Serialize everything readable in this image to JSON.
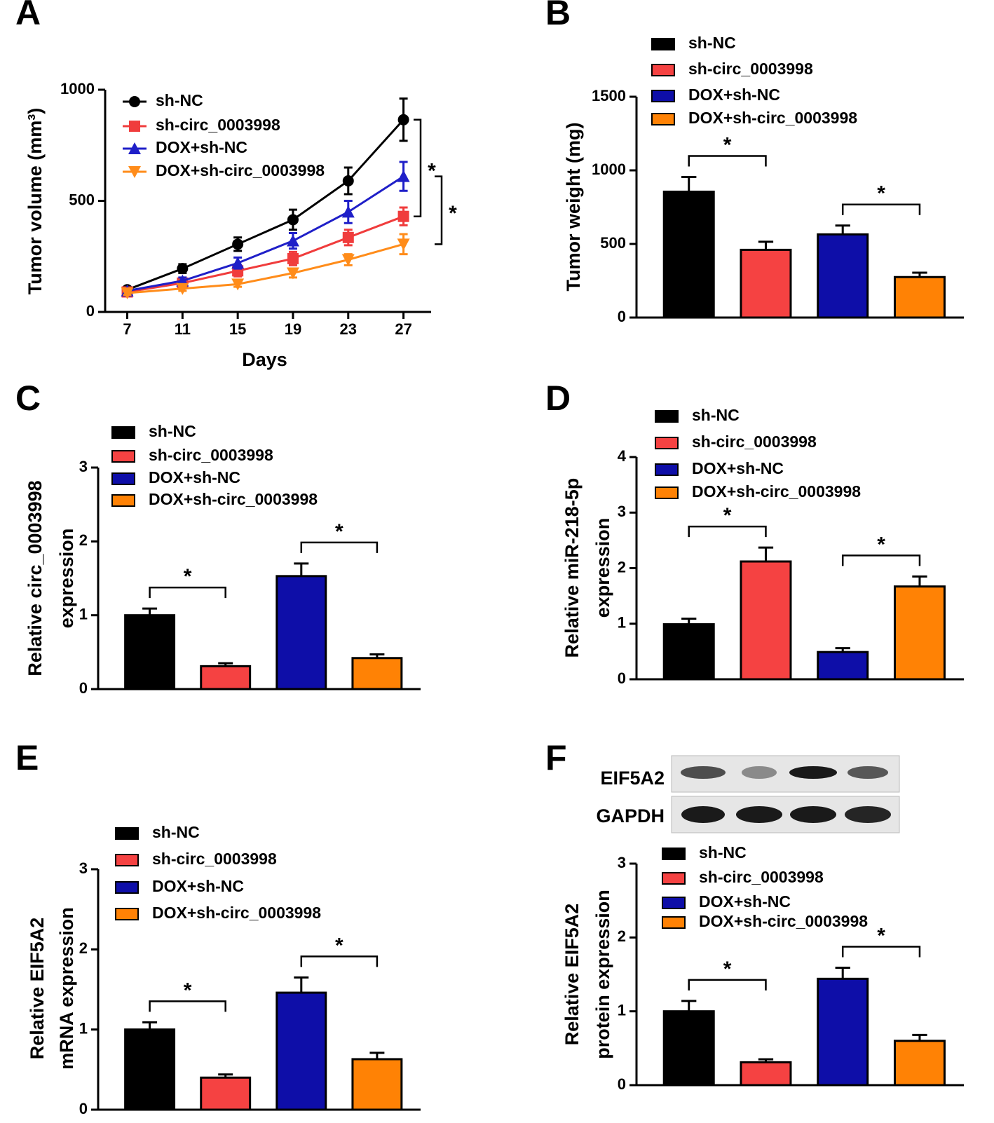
{
  "chart_data": [
    {
      "panel": "A",
      "type": "line",
      "x": [
        7,
        11,
        15,
        19,
        23,
        27
      ],
      "xlim": [
        5.4,
        29
      ],
      "xticks": [
        7,
        11,
        15,
        19,
        23,
        27
      ],
      "ylim": [
        0,
        1000
      ],
      "yticks": [
        0,
        500,
        1000
      ],
      "x_label": "Days",
      "y_label": [
        "Tumor volume (mm³)"
      ],
      "series": [
        {
          "name": "sh-NC",
          "color": "#000000",
          "marker": "circle",
          "values": [
            100,
            195,
            305,
            415,
            590,
            865
          ],
          "errors": [
            10,
            20,
            30,
            45,
            60,
            95
          ]
        },
        {
          "name": "sh-circ_0003998",
          "color": "#f03c3c",
          "marker": "square",
          "values": [
            90,
            130,
            185,
            240,
            335,
            430
          ],
          "errors": [
            10,
            15,
            25,
            30,
            35,
            40
          ]
        },
        {
          "name": "DOX+sh-NC",
          "color": "#1f1fc8",
          "marker": "triangle-up",
          "values": [
            95,
            140,
            220,
            320,
            450,
            610
          ],
          "errors": [
            10,
            15,
            25,
            35,
            50,
            65
          ]
        },
        {
          "name": "DOX+sh-circ_0003998",
          "color": "#ff8c1a",
          "marker": "triangle-down",
          "values": [
            85,
            105,
            125,
            175,
            235,
            305
          ],
          "errors": [
            8,
            10,
            12,
            20,
            25,
            45
          ]
        }
      ],
      "annotations": [
        "*",
        "*"
      ]
    },
    {
      "panel": "B",
      "type": "bar",
      "ylim": [
        0,
        1500
      ],
      "yticks": [
        0,
        500,
        1000,
        1500
      ],
      "y_label": [
        "Tumor weight (mg)"
      ],
      "series": [
        {
          "name": "sh-NC",
          "color": "#000000",
          "values": [
            855
          ],
          "errors": [
            100
          ]
        },
        {
          "name": "sh-circ_0003998",
          "color": "#f54242",
          "values": [
            460
          ],
          "errors": [
            55
          ]
        },
        {
          "name": "DOX+sh-NC",
          "color": "#0e0ea8",
          "values": [
            565
          ],
          "errors": [
            60
          ]
        },
        {
          "name": "DOX+sh-circ_0003998",
          "color": "#ff8205",
          "values": [
            275
          ],
          "errors": [
            30
          ]
        }
      ],
      "annotations": [
        "*",
        "*"
      ]
    },
    {
      "panel": "C",
      "type": "bar",
      "ylim": [
        0,
        3
      ],
      "yticks": [
        0,
        1,
        2,
        3
      ],
      "y_label": [
        "Relative circ_0003998",
        "expression"
      ],
      "series": [
        {
          "name": "sh-NC",
          "color": "#000000",
          "values": [
            1.0
          ],
          "errors": [
            0.09
          ]
        },
        {
          "name": "sh-circ_0003998",
          "color": "#f54242",
          "values": [
            0.31
          ],
          "errors": [
            0.04
          ]
        },
        {
          "name": "DOX+sh-NC",
          "color": "#0e0ea8",
          "values": [
            1.53
          ],
          "errors": [
            0.17
          ]
        },
        {
          "name": "DOX+sh-circ_0003998",
          "color": "#ff8205",
          "values": [
            0.42
          ],
          "errors": [
            0.05
          ]
        }
      ],
      "annotations": [
        "*",
        "*"
      ]
    },
    {
      "panel": "D",
      "type": "bar",
      "ylim": [
        0,
        4
      ],
      "yticks": [
        0,
        1,
        2,
        3,
        4
      ],
      "y_label": [
        "Relative miR-218-5p",
        "expression"
      ],
      "series": [
        {
          "name": "sh-NC",
          "color": "#000000",
          "values": [
            0.99
          ],
          "errors": [
            0.1
          ]
        },
        {
          "name": "sh-circ_0003998",
          "color": "#f54242",
          "values": [
            2.12
          ],
          "errors": [
            0.25
          ]
        },
        {
          "name": "DOX+sh-NC",
          "color": "#0e0ea8",
          "values": [
            0.49
          ],
          "errors": [
            0.07
          ]
        },
        {
          "name": "DOX+sh-circ_0003998",
          "color": "#ff8205",
          "values": [
            1.67
          ],
          "errors": [
            0.18
          ]
        }
      ],
      "annotations": [
        "*",
        "*"
      ]
    },
    {
      "panel": "E",
      "type": "bar",
      "ylim": [
        0,
        3
      ],
      "yticks": [
        0,
        1,
        2,
        3
      ],
      "y_label": [
        "Relative EIF5A2",
        "mRNA expression"
      ],
      "series": [
        {
          "name": "sh-NC",
          "color": "#000000",
          "values": [
            1.0
          ],
          "errors": [
            0.09
          ]
        },
        {
          "name": "sh-circ_0003998",
          "color": "#f54242",
          "values": [
            0.4
          ],
          "errors": [
            0.04
          ]
        },
        {
          "name": "DOX+sh-NC",
          "color": "#0e0ea8",
          "values": [
            1.46
          ],
          "errors": [
            0.19
          ]
        },
        {
          "name": "DOX+sh-circ_0003998",
          "color": "#ff8205",
          "values": [
            0.63
          ],
          "errors": [
            0.08
          ]
        }
      ],
      "annotations": [
        "*",
        "*"
      ]
    },
    {
      "panel": "F",
      "type": "bar",
      "ylim": [
        0,
        3
      ],
      "yticks": [
        0,
        1,
        2,
        3
      ],
      "y_label": [
        "Relative EIF5A2",
        "protein expression"
      ],
      "blot": [
        "EIF5A2",
        "GAPDH"
      ],
      "series": [
        {
          "name": "sh-NC",
          "color": "#000000",
          "values": [
            1.0
          ],
          "errors": [
            0.14
          ]
        },
        {
          "name": "sh-circ_0003998",
          "color": "#f54242",
          "values": [
            0.31
          ],
          "errors": [
            0.04
          ]
        },
        {
          "name": "DOX+sh-NC",
          "color": "#0e0ea8",
          "values": [
            1.44
          ],
          "errors": [
            0.15
          ]
        },
        {
          "name": "DOX+sh-circ_0003998",
          "color": "#ff8205",
          "values": [
            0.6
          ],
          "errors": [
            0.08
          ]
        }
      ],
      "annotations": [
        "*",
        "*"
      ]
    }
  ]
}
